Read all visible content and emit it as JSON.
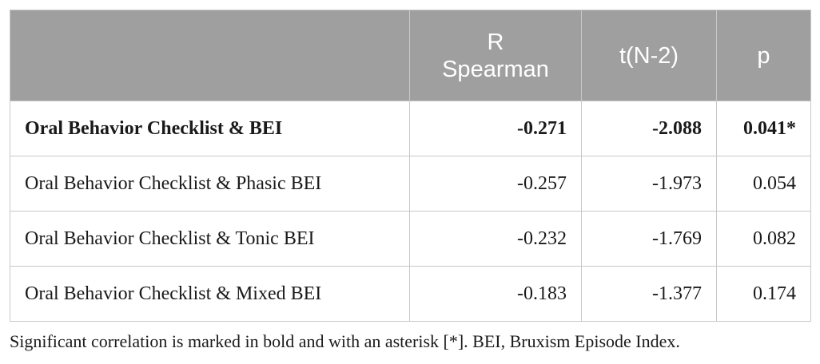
{
  "table": {
    "header": [
      "R\nSpearman",
      "t(N-2)",
      "p"
    ],
    "rows": [
      {
        "label": "Oral Behavior Checklist & BEI",
        "values": [
          "-0.271",
          "-2.088",
          "0.041*"
        ]
      },
      {
        "label": "Oral Behavior Checklist & Phasic BEI",
        "values": [
          "-0.257",
          "-1.973",
          "0.054"
        ]
      },
      {
        "label": "Oral Behavior Checklist & Tonic BEI",
        "values": [
          "-0.232",
          "-1.769",
          "0.082"
        ]
      },
      {
        "label": "Oral Behavior Checklist & Mixed BEI",
        "values": [
          "-0.183",
          "-1.377",
          "0.174"
        ]
      }
    ]
  },
  "footnote": "Significant correlation is marked in bold and with an asterisk [*]. BEI, Bruxism Episode Index."
}
